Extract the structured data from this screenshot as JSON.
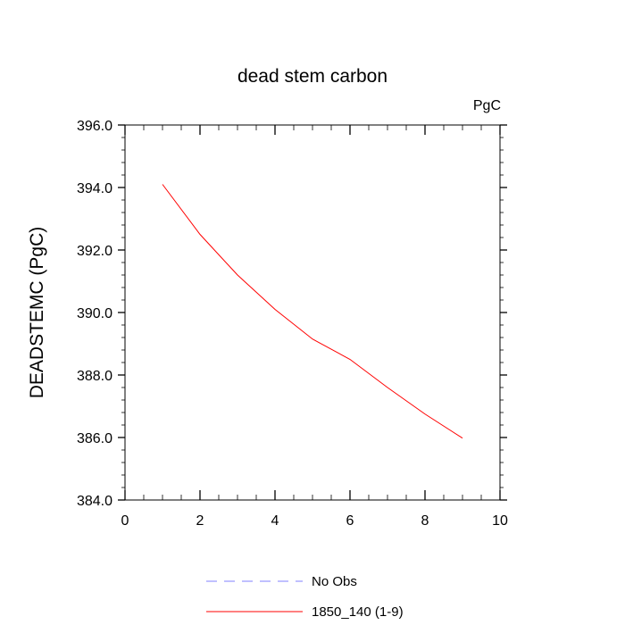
{
  "chart_data": {
    "type": "line",
    "title": "dead stem carbon",
    "units_label": "PgC",
    "ylabel": "DEADSTEMC  (PgC)",
    "xlabel": "",
    "xlim": [
      0,
      10
    ],
    "ylim": [
      384.0,
      396.0
    ],
    "x_ticks": [
      0,
      2,
      4,
      6,
      8,
      10
    ],
    "x_tick_labels": [
      "0",
      "2",
      "4",
      "6",
      "8",
      "10"
    ],
    "y_ticks": [
      384.0,
      386.0,
      388.0,
      390.0,
      392.0,
      394.0,
      396.0
    ],
    "y_tick_labels": [
      "384.0",
      "386.0",
      "388.0",
      "390.0",
      "392.0",
      "394.0",
      "396.0"
    ],
    "grid": false,
    "legend_position": "bottom",
    "series": [
      {
        "name": "No Obs",
        "color": "#8080ff",
        "dashed": true,
        "x": [],
        "values": []
      },
      {
        "name": "1850_140 (1-9)",
        "color": "#ff0000",
        "dashed": false,
        "x": [
          1,
          2,
          3,
          4,
          5,
          6,
          7,
          8,
          9
        ],
        "values": [
          394.1,
          392.5,
          391.2,
          390.1,
          389.15,
          388.5,
          387.6,
          386.75,
          385.98
        ]
      }
    ]
  }
}
